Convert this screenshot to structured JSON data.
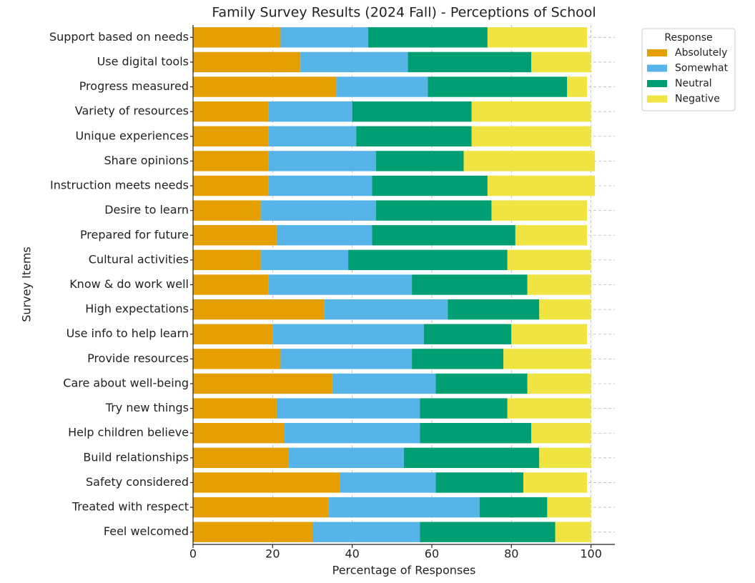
{
  "chart_data": {
    "type": "stacked-bar-horizontal",
    "title": "Family Survey Results (2024 Fall) - Perceptions of School",
    "x_label": "Percentage of Responses",
    "y_label": "Survey Items",
    "legend_title": "Response",
    "legend": "upper right outside",
    "grid": true,
    "xlim": [
      0,
      106
    ],
    "xticks": [
      0,
      20,
      40,
      60,
      80,
      100
    ],
    "categories": [
      "Support based on needs",
      "Use digital tools",
      "Progress measured",
      "Variety of resources",
      "Unique experiences",
      "Share opinions",
      "Instruction meets needs",
      "Desire to learn",
      "Prepared for future",
      "Cultural activities",
      "Know & do work well",
      "High expectations",
      "Use info to help learn",
      "Provide resources",
      "Care about well-being",
      "Try new things",
      "Help children believe",
      "Build relationships",
      "Safety considered",
      "Treated with respect",
      "Feel welcomed"
    ],
    "series": [
      {
        "name": "Absolutely",
        "color": "#E69F00",
        "values": [
          22,
          27,
          36,
          19,
          19,
          19,
          19,
          17,
          21,
          17,
          19,
          33,
          20,
          22,
          35,
          21,
          23,
          24,
          37,
          34,
          30
        ]
      },
      {
        "name": "Somewhat",
        "color": "#56B4E9",
        "values": [
          22,
          27,
          23,
          21,
          22,
          27,
          26,
          29,
          24,
          22,
          36,
          31,
          38,
          33,
          26,
          36,
          34,
          29,
          24,
          38,
          27
        ]
      },
      {
        "name": "Neutral",
        "color": "#009E73",
        "values": [
          30,
          31,
          35,
          30,
          29,
          22,
          29,
          29,
          36,
          40,
          29,
          23,
          22,
          23,
          23,
          22,
          28,
          34,
          22,
          17,
          34
        ]
      },
      {
        "name": "Negative",
        "color": "#F0E442",
        "values": [
          25,
          15,
          5,
          30,
          30,
          33,
          27,
          24,
          18,
          21,
          16,
          13,
          19,
          22,
          16,
          21,
          15,
          13,
          16,
          11,
          9
        ]
      }
    ]
  }
}
